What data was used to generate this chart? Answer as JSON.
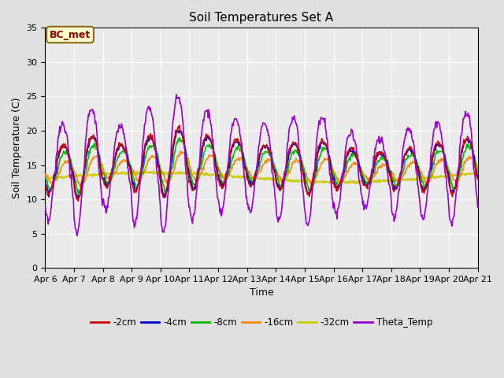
{
  "title": "Soil Temperatures Set A",
  "xlabel": "Time",
  "ylabel": "Soil Temperature (C)",
  "ylim": [
    0,
    35
  ],
  "yticks": [
    0,
    5,
    10,
    15,
    20,
    25,
    30,
    35
  ],
  "annotation": "BC_met",
  "series_colors": {
    "-2cm": "#cc0000",
    "-4cm": "#0000cc",
    "-8cm": "#00bb00",
    "-16cm": "#ff8800",
    "-32cm": "#cccc00",
    "Theta_Temp": "#9900cc"
  },
  "days": [
    "Apr 6",
    "Apr 7",
    "Apr 8",
    "Apr 9",
    "Apr 10",
    "Apr 11",
    "Apr 12",
    "Apr 13",
    "Apr 14",
    "Apr 15",
    "Apr 16",
    "Apr 17",
    "Apr 18",
    "Apr 19",
    "Apr 20",
    "Apr 21"
  ],
  "background_color": "#e0e0e0",
  "plot_bg_color": "#ebebeb"
}
